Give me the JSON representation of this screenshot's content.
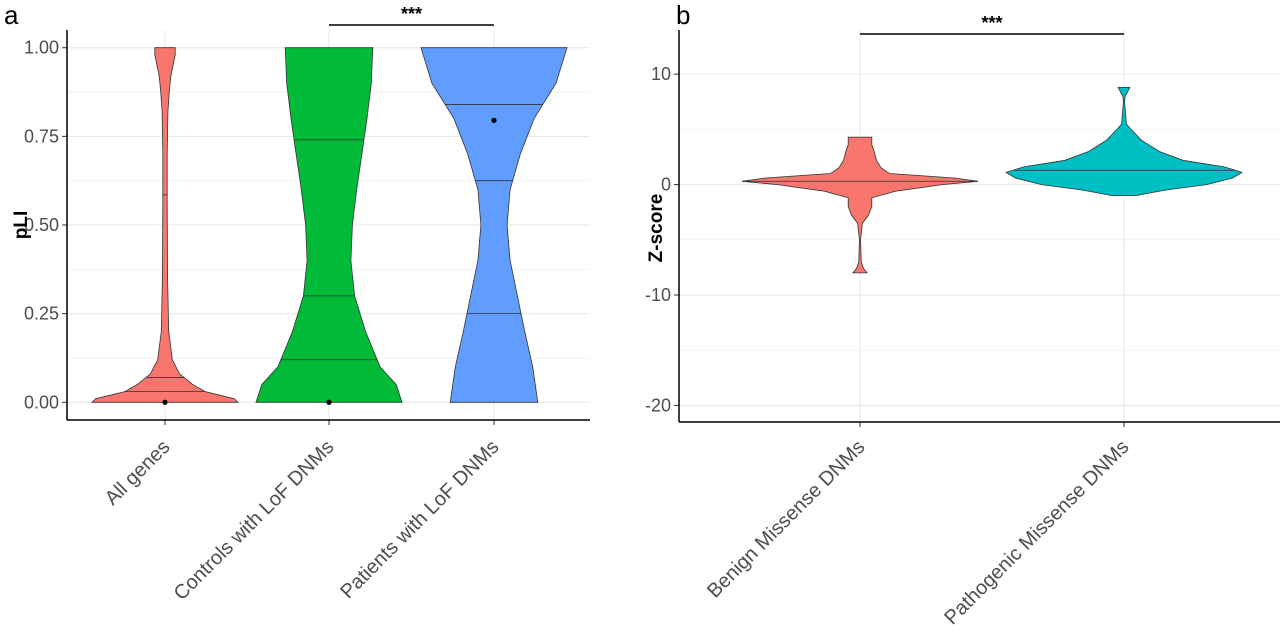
{
  "panels": [
    {
      "letter": "a",
      "significance": "***"
    },
    {
      "letter": "b",
      "significance": "***"
    }
  ],
  "chart_data": [
    {
      "type": "violin",
      "panel": "a",
      "ylabel": "pLI",
      "xlabel": "",
      "ylim": [
        -0.05,
        1.05
      ],
      "yticks": [
        0.0,
        0.25,
        0.5,
        0.75,
        1.0
      ],
      "ytick_labels": [
        "0.00",
        "0.25",
        "0.50",
        "0.75",
        "1.00"
      ],
      "grid": true,
      "legend": "none",
      "significance": {
        "between": [
          "Controls with LoF DNMs",
          "Patients with LoF DNMs"
        ],
        "label": "***"
      },
      "series": [
        {
          "name": "All genes",
          "color": "#F8766D",
          "median": 0.0,
          "quantile_lines": [
            0.03,
            0.07,
            0.585
          ],
          "density": [
            [
              0.0,
              1.0
            ],
            [
              0.01,
              0.95
            ],
            [
              0.02,
              0.75
            ],
            [
              0.03,
              0.55
            ],
            [
              0.05,
              0.38
            ],
            [
              0.08,
              0.2
            ],
            [
              0.12,
              0.1
            ],
            [
              0.2,
              0.05
            ],
            [
              0.35,
              0.035
            ],
            [
              0.55,
              0.03
            ],
            [
              0.7,
              0.03
            ],
            [
              0.82,
              0.04
            ],
            [
              0.88,
              0.06
            ],
            [
              0.92,
              0.08
            ],
            [
              0.95,
              0.11
            ],
            [
              0.98,
              0.14
            ],
            [
              1.0,
              0.14
            ]
          ]
        },
        {
          "name": "Controls with LoF DNMs",
          "color": "#00BA38",
          "median": 0.0,
          "quantile_lines": [
            0.12,
            0.3,
            0.74
          ],
          "density": [
            [
              0.0,
              1.0
            ],
            [
              0.05,
              0.92
            ],
            [
              0.1,
              0.7
            ],
            [
              0.2,
              0.5
            ],
            [
              0.3,
              0.35
            ],
            [
              0.4,
              0.3
            ],
            [
              0.5,
              0.32
            ],
            [
              0.6,
              0.38
            ],
            [
              0.7,
              0.45
            ],
            [
              0.8,
              0.52
            ],
            [
              0.9,
              0.58
            ],
            [
              1.0,
              0.6
            ]
          ]
        },
        {
          "name": "Patients with LoF DNMs",
          "color": "#619CFF",
          "median": 0.795,
          "quantile_lines": [
            0.25,
            0.625,
            0.84
          ],
          "density": [
            [
              0.0,
              0.6
            ],
            [
              0.1,
              0.53
            ],
            [
              0.2,
              0.42
            ],
            [
              0.3,
              0.32
            ],
            [
              0.4,
              0.22
            ],
            [
              0.5,
              0.18
            ],
            [
              0.6,
              0.22
            ],
            [
              0.7,
              0.36
            ],
            [
              0.8,
              0.55
            ],
            [
              0.9,
              0.85
            ],
            [
              1.0,
              1.0
            ]
          ]
        }
      ]
    },
    {
      "type": "violin",
      "panel": "b",
      "ylabel": "Z-score",
      "xlabel": "",
      "ylim": [
        -21.5,
        14
      ],
      "yticks": [
        -20,
        -10,
        0,
        10
      ],
      "ytick_labels": [
        "-20",
        "-10",
        "0",
        "10"
      ],
      "grid": true,
      "legend": "none",
      "significance": {
        "between": [
          "Benign Missense DNMs",
          "Pathogenic Missense DNMs"
        ],
        "label": "***"
      },
      "series": [
        {
          "name": "Benign Missense DNMs",
          "color": "#F8766D",
          "median": 0.3,
          "density": [
            [
              -8.0,
              0.06
            ],
            [
              -7.6,
              0.03
            ],
            [
              -7.0,
              0.01
            ],
            [
              -5.0,
              0.005
            ],
            [
              -3.5,
              0.02
            ],
            [
              -2.8,
              0.07
            ],
            [
              -2.0,
              0.1
            ],
            [
              -1.2,
              0.1
            ],
            [
              -0.6,
              0.3
            ],
            [
              0.0,
              0.7
            ],
            [
              0.3,
              1.0
            ],
            [
              0.6,
              0.8
            ],
            [
              1.0,
              0.25
            ],
            [
              1.5,
              0.18
            ],
            [
              2.2,
              0.14
            ],
            [
              3.0,
              0.12
            ],
            [
              3.6,
              0.1
            ],
            [
              4.3,
              0.1
            ]
          ]
        },
        {
          "name": "Pathogenic Missense DNMs",
          "color": "#00BFC4",
          "median": 1.3,
          "density": [
            [
              -1.0,
              0.1
            ],
            [
              -0.5,
              0.35
            ],
            [
              0.0,
              0.7
            ],
            [
              0.6,
              0.92
            ],
            [
              1.1,
              1.0
            ],
            [
              1.6,
              0.85
            ],
            [
              2.2,
              0.5
            ],
            [
              3.0,
              0.3
            ],
            [
              4.0,
              0.15
            ],
            [
              5.0,
              0.06
            ],
            [
              5.5,
              0.02
            ],
            [
              7.5,
              0.005
            ],
            [
              8.0,
              0.01
            ],
            [
              8.8,
              0.05
            ]
          ]
        }
      ]
    }
  ]
}
